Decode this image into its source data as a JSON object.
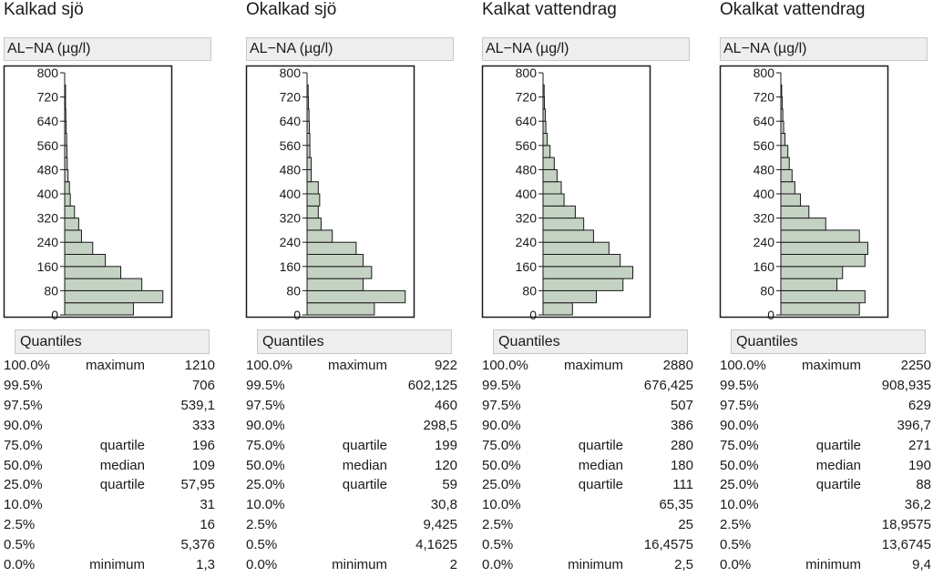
{
  "y_label": "AL−NA (µg/l)",
  "quantiles_header": "Quantiles",
  "colors": {
    "bar_fill": "#c4d2c4",
    "bar_stroke": "#1a1a1a",
    "header_bg": "#eeeeee"
  },
  "panels": [
    {
      "title": "Kalkad sjö",
      "quantiles": [
        {
          "pct": "100.0%",
          "label": "maximum",
          "value": "1210"
        },
        {
          "pct": "99.5%",
          "label": "",
          "value": "706"
        },
        {
          "pct": "97.5%",
          "label": "",
          "value": "539,1"
        },
        {
          "pct": "90.0%",
          "label": "",
          "value": "333"
        },
        {
          "pct": "75.0%",
          "label": "quartile",
          "value": "196"
        },
        {
          "pct": "50.0%",
          "label": "median",
          "value": "109"
        },
        {
          "pct": "25.0%",
          "label": "quartile",
          "value": "57,95"
        },
        {
          "pct": "10.0%",
          "label": "",
          "value": "31"
        },
        {
          "pct": "2.5%",
          "label": "",
          "value": "16"
        },
        {
          "pct": "0.5%",
          "label": "",
          "value": "5,376"
        },
        {
          "pct": "0.0%",
          "label": "minimum",
          "value": "1,3"
        }
      ]
    },
    {
      "title": "Okalkad sjö",
      "quantiles": [
        {
          "pct": "100.0%",
          "label": "maximum",
          "value": "922"
        },
        {
          "pct": "99.5%",
          "label": "",
          "value": "602,125"
        },
        {
          "pct": "97.5%",
          "label": "",
          "value": "460"
        },
        {
          "pct": "90.0%",
          "label": "",
          "value": "298,5"
        },
        {
          "pct": "75.0%",
          "label": "quartile",
          "value": "199"
        },
        {
          "pct": "50.0%",
          "label": "median",
          "value": "120"
        },
        {
          "pct": "25.0%",
          "label": "quartile",
          "value": "59"
        },
        {
          "pct": "10.0%",
          "label": "",
          "value": "30,8"
        },
        {
          "pct": "2.5%",
          "label": "",
          "value": "9,425"
        },
        {
          "pct": "0.5%",
          "label": "",
          "value": "4,1625"
        },
        {
          "pct": "0.0%",
          "label": "minimum",
          "value": "2"
        }
      ]
    },
    {
      "title": "Kalkat vattendrag",
      "quantiles": [
        {
          "pct": "100.0%",
          "label": "maximum",
          "value": "2880"
        },
        {
          "pct": "99.5%",
          "label": "",
          "value": "676,425"
        },
        {
          "pct": "97.5%",
          "label": "",
          "value": "507"
        },
        {
          "pct": "90.0%",
          "label": "",
          "value": "386"
        },
        {
          "pct": "75.0%",
          "label": "quartile",
          "value": "280"
        },
        {
          "pct": "50.0%",
          "label": "median",
          "value": "180"
        },
        {
          "pct": "25.0%",
          "label": "quartile",
          "value": "111"
        },
        {
          "pct": "10.0%",
          "label": "",
          "value": "65,35"
        },
        {
          "pct": "2.5%",
          "label": "",
          "value": "25"
        },
        {
          "pct": "0.5%",
          "label": "",
          "value": "16,4575"
        },
        {
          "pct": "0.0%",
          "label": "minimum",
          "value": "2,5"
        }
      ]
    },
    {
      "title": "Okalkat vattendrag",
      "quantiles": [
        {
          "pct": "100.0%",
          "label": "maximum",
          "value": "2250"
        },
        {
          "pct": "99.5%",
          "label": "",
          "value": "908,935"
        },
        {
          "pct": "97.5%",
          "label": "",
          "value": "629"
        },
        {
          "pct": "90.0%",
          "label": "",
          "value": "396,7"
        },
        {
          "pct": "75.0%",
          "label": "quartile",
          "value": "271"
        },
        {
          "pct": "50.0%",
          "label": "median",
          "value": "190"
        },
        {
          "pct": "25.0%",
          "label": "quartile",
          "value": "88"
        },
        {
          "pct": "10.0%",
          "label": "",
          "value": "36,2"
        },
        {
          "pct": "2.5%",
          "label": "",
          "value": "18,9575"
        },
        {
          "pct": "0.5%",
          "label": "",
          "value": "13,6745"
        },
        {
          "pct": "0.0%",
          "label": "minimum",
          "value": "9,4"
        }
      ]
    }
  ],
  "chart_data": [
    {
      "type": "bar",
      "orientation": "horizontal",
      "title": "Kalkad sjö",
      "ylabel": "AL−NA (µg/l)",
      "ylim": [
        0,
        800
      ],
      "yticks": [
        0,
        80,
        160,
        240,
        320,
        400,
        480,
        560,
        640,
        720,
        800
      ],
      "bin_width": 40,
      "bins": [
        0,
        40,
        80,
        120,
        160,
        200,
        240,
        280,
        320,
        360,
        400,
        440,
        480,
        520,
        560,
        600,
        640,
        680,
        720,
        760
      ],
      "values": [
        24.5,
        35,
        27.5,
        20,
        14.5,
        10,
        6,
        5,
        3.5,
        2,
        1.7,
        1.2,
        0.9,
        0.8,
        0.7,
        0.5,
        0.4,
        0.3,
        0.3,
        0
      ]
    },
    {
      "type": "bar",
      "orientation": "horizontal",
      "title": "Okalkad sjö",
      "ylabel": "AL−NA (µg/l)",
      "ylim": [
        0,
        800
      ],
      "yticks": [
        0,
        80,
        160,
        240,
        320,
        400,
        480,
        560,
        640,
        720,
        800
      ],
      "bin_width": 40,
      "bins": [
        0,
        40,
        80,
        120,
        160,
        200,
        240,
        280,
        320,
        360,
        400,
        440,
        480,
        520,
        560,
        600,
        640,
        680,
        720,
        760
      ],
      "values": [
        24,
        35,
        20,
        23,
        20,
        17.5,
        9,
        5,
        4,
        4.5,
        4,
        1.5,
        1.5,
        1,
        1,
        0.8,
        0.7,
        0.5,
        0.4,
        0
      ]
    },
    {
      "type": "bar",
      "orientation": "horizontal",
      "title": "Kalkat vattendrag",
      "ylabel": "AL−NA (µg/l)",
      "ylim": [
        0,
        800
      ],
      "yticks": [
        0,
        80,
        160,
        240,
        320,
        400,
        480,
        560,
        640,
        720,
        800
      ],
      "bin_width": 40,
      "bins": [
        0,
        40,
        80,
        120,
        160,
        200,
        240,
        280,
        320,
        360,
        400,
        440,
        480,
        520,
        560,
        600,
        640,
        680,
        720,
        760
      ],
      "values": [
        10.5,
        19,
        28.5,
        32,
        27.5,
        23.5,
        18,
        14.5,
        11.5,
        7.5,
        6.5,
        5,
        4,
        2.5,
        1.5,
        1,
        0.8,
        0.5,
        0.4,
        0
      ]
    },
    {
      "type": "bar",
      "orientation": "horizontal",
      "title": "Okalkat vattendrag",
      "ylabel": "AL−NA (µg/l)",
      "ylim": [
        0,
        800
      ],
      "yticks": [
        0,
        80,
        160,
        240,
        320,
        400,
        480,
        560,
        640,
        720,
        800
      ],
      "bin_width": 40,
      "bins": [
        0,
        40,
        80,
        120,
        160,
        200,
        240,
        280,
        320,
        360,
        400,
        440,
        480,
        520,
        560,
        600,
        640,
        680,
        720,
        760
      ],
      "values": [
        28,
        30,
        20,
        22,
        30,
        31,
        28,
        16,
        10,
        7,
        5,
        4,
        3,
        2.5,
        1.5,
        1,
        0.7,
        0.5,
        0.3,
        0
      ]
    }
  ]
}
